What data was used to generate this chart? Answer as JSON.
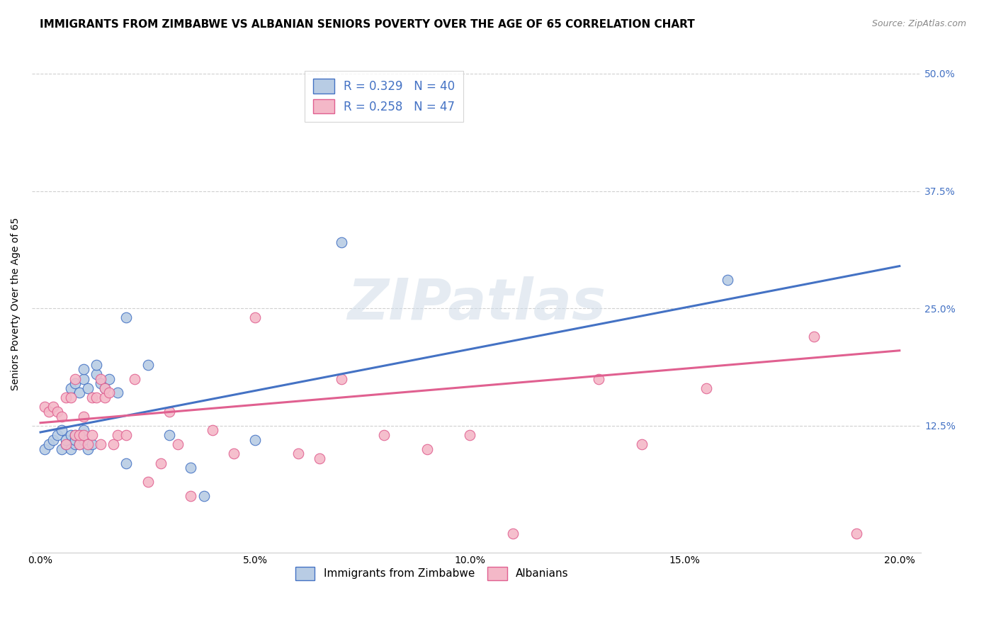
{
  "title": "IMMIGRANTS FROM ZIMBABWE VS ALBANIAN SENIORS POVERTY OVER THE AGE OF 65 CORRELATION CHART",
  "source": "Source: ZipAtlas.com",
  "ylabel": "Seniors Poverty Over the Age of 65",
  "xlabel_ticks": [
    "0.0%",
    "",
    "5.0%",
    "",
    "10.0%",
    "",
    "15.0%",
    "",
    "20.0%"
  ],
  "xlabel_vals": [
    0.0,
    0.025,
    0.05,
    0.075,
    0.1,
    0.125,
    0.15,
    0.175,
    0.2
  ],
  "ylabel_ticks": [
    "12.5%",
    "25.0%",
    "37.5%",
    "50.0%"
  ],
  "ylabel_vals": [
    0.125,
    0.25,
    0.375,
    0.5
  ],
  "xlim": [
    -0.002,
    0.205
  ],
  "ylim": [
    -0.01,
    0.52
  ],
  "watermark_text": "ZIPatlas",
  "blue_color": "#4472c4",
  "blue_line_color": "#4472c4",
  "blue_dot_color": "#b8cce4",
  "pink_line_color": "#e06090",
  "pink_dot_color": "#f4b8c8",
  "pink_edge_color": "#e06090",
  "tick_fontsize": 10,
  "axis_label_fontsize": 10,
  "title_fontsize": 11,
  "legend1_label1": "R = 0.329   N = 40",
  "legend1_label2": "R = 0.258   N = 47",
  "legend2_label1": "Immigrants from Zimbabwe",
  "legend2_label2": "Albanians",
  "blue_line_x0": 0.0,
  "blue_line_y0": 0.118,
  "blue_line_x1": 0.2,
  "blue_line_y1": 0.295,
  "pink_line_x0": 0.0,
  "pink_line_y0": 0.128,
  "pink_line_x1": 0.2,
  "pink_line_y1": 0.205,
  "blue_scatter_x": [
    0.001,
    0.002,
    0.003,
    0.004,
    0.005,
    0.005,
    0.006,
    0.006,
    0.007,
    0.007,
    0.007,
    0.008,
    0.008,
    0.008,
    0.008,
    0.009,
    0.009,
    0.009,
    0.01,
    0.01,
    0.01,
    0.01,
    0.011,
    0.011,
    0.012,
    0.013,
    0.013,
    0.014,
    0.015,
    0.016,
    0.018,
    0.02,
    0.025,
    0.03,
    0.035,
    0.038,
    0.05,
    0.07,
    0.16,
    0.02
  ],
  "blue_scatter_y": [
    0.1,
    0.105,
    0.11,
    0.115,
    0.1,
    0.12,
    0.105,
    0.11,
    0.1,
    0.115,
    0.165,
    0.105,
    0.11,
    0.115,
    0.17,
    0.105,
    0.115,
    0.16,
    0.11,
    0.12,
    0.175,
    0.185,
    0.1,
    0.165,
    0.105,
    0.18,
    0.19,
    0.17,
    0.165,
    0.175,
    0.16,
    0.24,
    0.19,
    0.115,
    0.08,
    0.05,
    0.11,
    0.32,
    0.28,
    0.085
  ],
  "pink_scatter_x": [
    0.001,
    0.002,
    0.003,
    0.004,
    0.005,
    0.006,
    0.006,
    0.007,
    0.008,
    0.008,
    0.009,
    0.009,
    0.01,
    0.01,
    0.011,
    0.012,
    0.012,
    0.013,
    0.014,
    0.014,
    0.015,
    0.015,
    0.016,
    0.017,
    0.018,
    0.02,
    0.022,
    0.025,
    0.028,
    0.03,
    0.032,
    0.035,
    0.04,
    0.045,
    0.05,
    0.06,
    0.065,
    0.07,
    0.08,
    0.09,
    0.1,
    0.11,
    0.13,
    0.14,
    0.155,
    0.18,
    0.19
  ],
  "pink_scatter_y": [
    0.145,
    0.14,
    0.145,
    0.14,
    0.135,
    0.105,
    0.155,
    0.155,
    0.115,
    0.175,
    0.105,
    0.115,
    0.115,
    0.135,
    0.105,
    0.115,
    0.155,
    0.155,
    0.175,
    0.105,
    0.155,
    0.165,
    0.16,
    0.105,
    0.115,
    0.115,
    0.175,
    0.065,
    0.085,
    0.14,
    0.105,
    0.05,
    0.12,
    0.095,
    0.24,
    0.095,
    0.09,
    0.175,
    0.115,
    0.1,
    0.115,
    0.01,
    0.175,
    0.105,
    0.165,
    0.22,
    0.01
  ]
}
